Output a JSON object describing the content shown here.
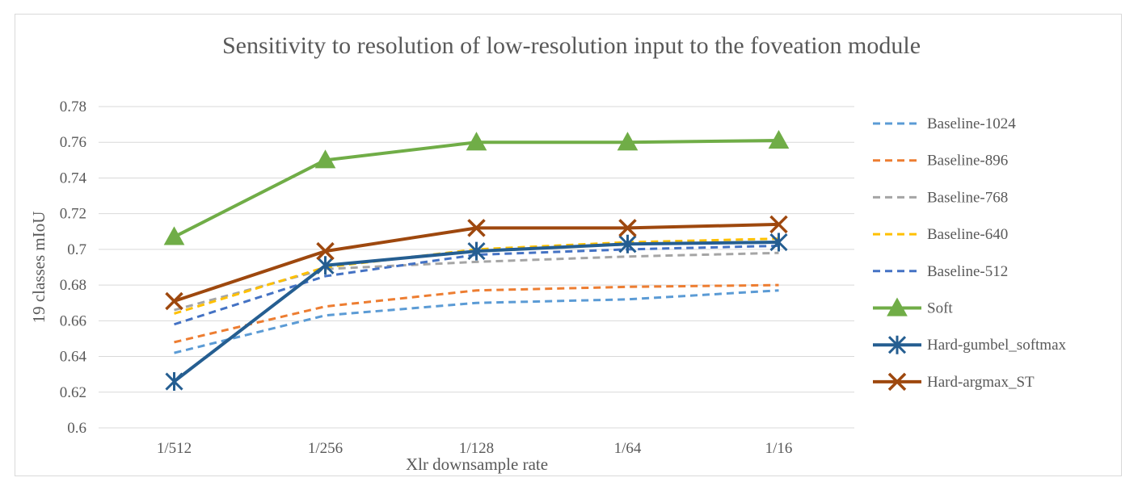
{
  "chart_data": {
    "type": "line",
    "title": "Sensitivity to resolution of low-resolution input to the foveation module",
    "xlabel": "Xlr downsample rate",
    "ylabel": "19 classes mIoU",
    "categories": [
      "1/512",
      "1/256",
      "1/128",
      "1/64",
      "1/16"
    ],
    "ylim": [
      0.6,
      0.78
    ],
    "yticks": [
      "0.6",
      "0.62",
      "0.64",
      "0.66",
      "0.68",
      "0.7",
      "0.72",
      "0.74",
      "0.76",
      "0.78"
    ],
    "grid": true,
    "legend_position": "right",
    "series": [
      {
        "name": "Baseline-1024",
        "values": [
          0.642,
          0.663,
          0.67,
          0.672,
          0.677
        ],
        "color": "#5b9bd5",
        "dash": true,
        "marker": "none"
      },
      {
        "name": "Baseline-896",
        "values": [
          0.648,
          0.668,
          0.677,
          0.679,
          0.68
        ],
        "color": "#ed7d31",
        "dash": true,
        "marker": "none"
      },
      {
        "name": "Baseline-768",
        "values": [
          0.666,
          0.689,
          0.693,
          0.696,
          0.698
        ],
        "color": "#a5a5a5",
        "dash": true,
        "marker": "none"
      },
      {
        "name": "Baseline-640",
        "values": [
          0.664,
          0.69,
          0.7,
          0.704,
          0.706
        ],
        "color": "#ffc000",
        "dash": true,
        "marker": "none"
      },
      {
        "name": "Baseline-512",
        "values": [
          0.658,
          0.685,
          0.697,
          0.7,
          0.702
        ],
        "color": "#4472c4",
        "dash": true,
        "marker": "none"
      },
      {
        "name": "Soft",
        "values": [
          0.707,
          0.75,
          0.76,
          0.76,
          0.761
        ],
        "color": "#70ad47",
        "dash": false,
        "marker": "triangle"
      },
      {
        "name": "Hard-gumbel_softmax",
        "values": [
          0.626,
          0.691,
          0.699,
          0.703,
          0.704
        ],
        "color": "#255e91",
        "dash": false,
        "marker": "asterisk"
      },
      {
        "name": "Hard-argmax_ST",
        "values": [
          0.671,
          0.699,
          0.712,
          0.712,
          0.714
        ],
        "color": "#9e480e",
        "dash": false,
        "marker": "x"
      }
    ]
  }
}
